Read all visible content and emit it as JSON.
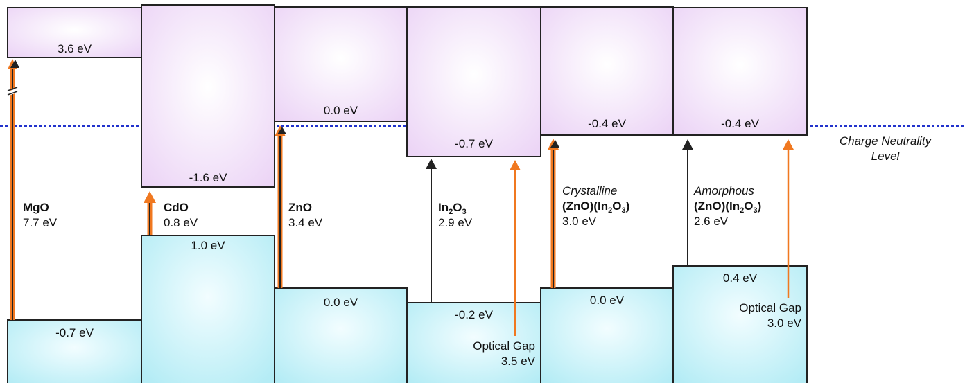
{
  "colors": {
    "conduction_band": "#f0e0fa",
    "valence_band": "#c8f3f8",
    "neutrality_line": "#2233cc",
    "optical_arrow": "#f07820",
    "gap_arrow": "#222222"
  },
  "neutrality": {
    "line1": "Charge Neutrality",
    "line2": "Level"
  },
  "materials": [
    {
      "name": "MgO",
      "gap": "7.7 eV",
      "cb": "3.6 eV",
      "vb": "-0.7 eV"
    },
    {
      "name": "CdO",
      "gap": "0.8 eV",
      "cb": "-1.6 eV",
      "vb": "1.0 eV"
    },
    {
      "name": "ZnO",
      "gap": "3.4 eV",
      "cb": "0.0 eV",
      "vb": "0.0 eV"
    },
    {
      "name_main": "In",
      "name_sub1": "2",
      "name_mid": "O",
      "name_sub2": "3",
      "gap": "2.9 eV",
      "cb": "-0.7 eV",
      "vb": "-0.2 eV",
      "optical_label": "Optical Gap",
      "optical_value": "3.5 eV"
    },
    {
      "qualifier": "Crystalline",
      "name_a": "(ZnO)(In",
      "name_sub1": "2",
      "name_mid": "O",
      "name_sub2": "3",
      "name_end": ")",
      "gap": "3.0 eV",
      "cb": "-0.4 eV",
      "vb": "0.0 eV"
    },
    {
      "qualifier": "Amorphous",
      "name_a": "(ZnO)(In",
      "name_sub1": "2",
      "name_mid": "O",
      "name_sub2": "3",
      "name_end": ")",
      "gap": "2.6 eV",
      "cb": "-0.4 eV",
      "vb": "0.4 eV",
      "optical_label": "Optical Gap",
      "optical_value": "3.0 eV"
    }
  ]
}
